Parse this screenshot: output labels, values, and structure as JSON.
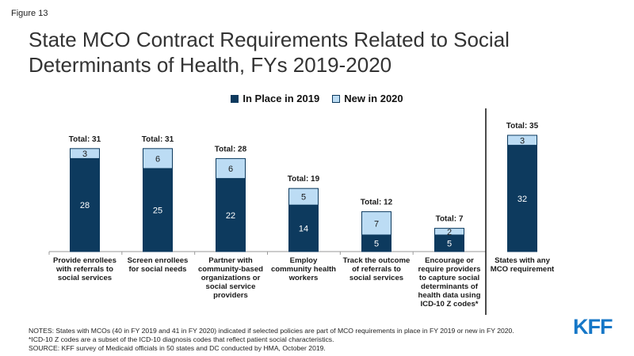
{
  "figure_label": "Figure 13",
  "title": "State MCO Contract Requirements Related to Social Determinants of Health, FYs 2019-2020",
  "colors": {
    "in_place": "#0d3a5e",
    "new": "#bcdcf4",
    "border": "#0d3a5e"
  },
  "chart_data": {
    "type": "bar",
    "stacked": true,
    "categories": [
      [
        "Provide enrollees",
        "with referrals to",
        "social services"
      ],
      [
        "Screen enrollees",
        "for social needs"
      ],
      [
        "Partner with",
        "community-based",
        "organizations or",
        "social service",
        "providers"
      ],
      [
        "Employ",
        "community health",
        "workers"
      ],
      [
        "Track the outcome",
        "of referrals to",
        "social services"
      ],
      [
        "Encourage or",
        "require providers",
        "to capture social",
        "determinants of",
        "health data using",
        "ICD-10 Z codes*"
      ],
      [
        "States with any",
        "MCO requirement"
      ]
    ],
    "series": [
      {
        "name": "In Place in 2019",
        "values": [
          28,
          25,
          22,
          14,
          5,
          5,
          32
        ]
      },
      {
        "name": "New in 2020",
        "values": [
          3,
          6,
          6,
          5,
          7,
          2,
          3
        ]
      }
    ],
    "totals": [
      "Total: 31",
      "Total: 31",
      "Total: 28",
      "Total: 19",
      "Total: 12",
      "Total: 7",
      "Total: 35"
    ],
    "legend_position": "top-center",
    "separator_before_last": true
  },
  "notes": [
    "NOTES: States with MCOs (40 in FY 2019 and 41 in FY 2020) indicated if selected policies are part of MCO requirements in place in FY 2019 or new in FY 2020.",
    "*ICD-10 Z codes are a subset of the ICD-10 diagnosis codes that reflect patient social characteristics.",
    "SOURCE: KFF survey of Medicaid officials in 50 states and DC conducted by HMA, October 2019."
  ],
  "logo_text": "KFF"
}
